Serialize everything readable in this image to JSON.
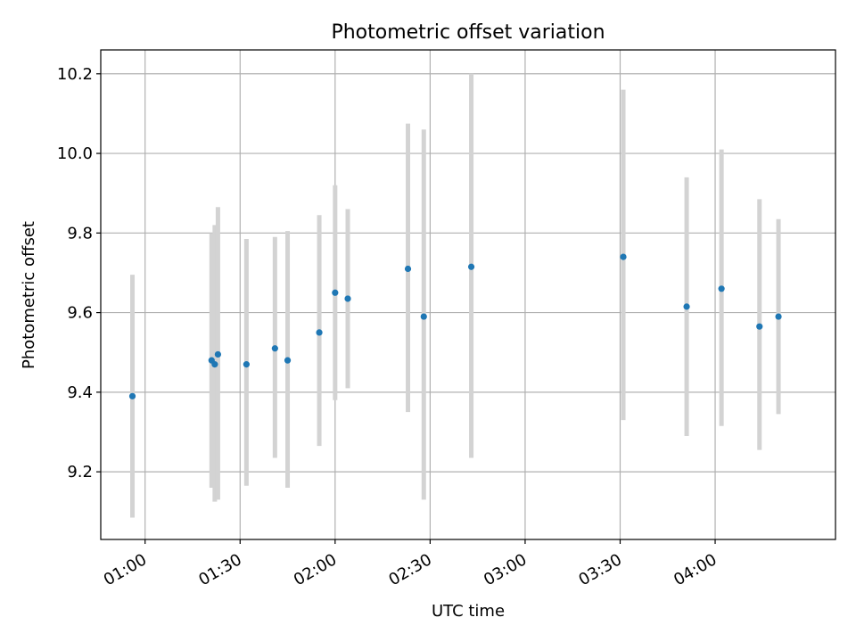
{
  "chart_data": {
    "type": "scatter",
    "title": "Photometric offset variation",
    "xlabel": "UTC time",
    "ylabel": "Photometric offset",
    "x_is_time": true,
    "xlim": [
      "00:46",
      "04:38"
    ],
    "ylim": [
      9.03,
      10.26
    ],
    "grid": true,
    "x_ticks": [
      "01:00",
      "01:30",
      "02:00",
      "02:30",
      "03:00",
      "03:30",
      "04:00"
    ],
    "y_ticks": [
      9.2,
      9.4,
      9.6,
      9.8,
      10.0,
      10.2
    ],
    "y_tick_labels": [
      "9.2",
      "9.4",
      "9.6",
      "9.8",
      "10.0",
      "10.2"
    ],
    "colors": {
      "point": "#1f77b4",
      "errorbar": "#d3d3d3",
      "grid": "#b0b0b0"
    },
    "series": [
      {
        "points": [
          {
            "x": "00:56",
            "y": 9.39,
            "ylow": 9.085,
            "yhigh": 9.695
          },
          {
            "x": "01:21",
            "y": 9.48,
            "ylow": 9.16,
            "yhigh": 9.8
          },
          {
            "x": "01:22",
            "y": 9.47,
            "ylow": 9.125,
            "yhigh": 9.82
          },
          {
            "x": "01:23",
            "y": 9.495,
            "ylow": 9.13,
            "yhigh": 9.865
          },
          {
            "x": "01:32",
            "y": 9.47,
            "ylow": 9.165,
            "yhigh": 9.785
          },
          {
            "x": "01:41",
            "y": 9.51,
            "ylow": 9.235,
            "yhigh": 9.79
          },
          {
            "x": "01:45",
            "y": 9.48,
            "ylow": 9.16,
            "yhigh": 9.805
          },
          {
            "x": "01:55",
            "y": 9.55,
            "ylow": 9.265,
            "yhigh": 9.845
          },
          {
            "x": "02:00",
            "y": 9.65,
            "ylow": 9.38,
            "yhigh": 9.92
          },
          {
            "x": "02:04",
            "y": 9.635,
            "ylow": 9.41,
            "yhigh": 9.86
          },
          {
            "x": "02:23",
            "y": 9.71,
            "ylow": 9.35,
            "yhigh": 10.075
          },
          {
            "x": "02:28",
            "y": 9.59,
            "ylow": 9.13,
            "yhigh": 10.06
          },
          {
            "x": "02:43",
            "y": 9.715,
            "ylow": 9.235,
            "yhigh": 10.2
          },
          {
            "x": "03:31",
            "y": 9.74,
            "ylow": 9.33,
            "yhigh": 10.16
          },
          {
            "x": "03:51",
            "y": 9.615,
            "ylow": 9.29,
            "yhigh": 9.94
          },
          {
            "x": "04:02",
            "y": 9.66,
            "ylow": 9.315,
            "yhigh": 10.01
          },
          {
            "x": "04:14",
            "y": 9.565,
            "ylow": 9.255,
            "yhigh": 9.885
          },
          {
            "x": "04:20",
            "y": 9.59,
            "ylow": 9.345,
            "yhigh": 9.835
          }
        ]
      }
    ]
  }
}
